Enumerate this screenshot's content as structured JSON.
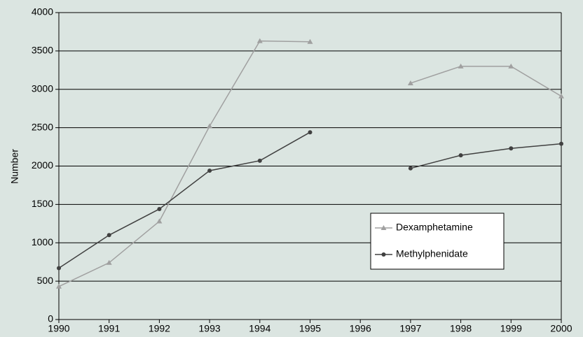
{
  "chart_data": {
    "type": "line",
    "y_label": "Number",
    "x": [
      1990,
      1991,
      1992,
      1993,
      1994,
      1995,
      1996,
      1997,
      1998,
      1999,
      2000
    ],
    "series": [
      {
        "name": "Dexamphetamine",
        "color": "#a0a0a0",
        "marker": "triangle",
        "values": [
          430,
          740,
          1280,
          2520,
          3630,
          3620,
          null,
          3080,
          3300,
          3300,
          2910
        ]
      },
      {
        "name": "Methylphenidate",
        "color": "#404040",
        "marker": "circle",
        "values": [
          670,
          1100,
          1440,
          1940,
          2070,
          2440,
          null,
          1970,
          2140,
          2230,
          2290
        ]
      }
    ],
    "xlim": [
      1990,
      2000
    ],
    "xticks": [
      1990,
      1991,
      1992,
      1993,
      1994,
      1995,
      1996,
      1997,
      1998,
      1999,
      2000
    ],
    "ylim": [
      0,
      4000
    ],
    "yticks": [
      0,
      500,
      1000,
      1500,
      2000,
      2500,
      3000,
      3500,
      4000
    ],
    "grid": true
  }
}
